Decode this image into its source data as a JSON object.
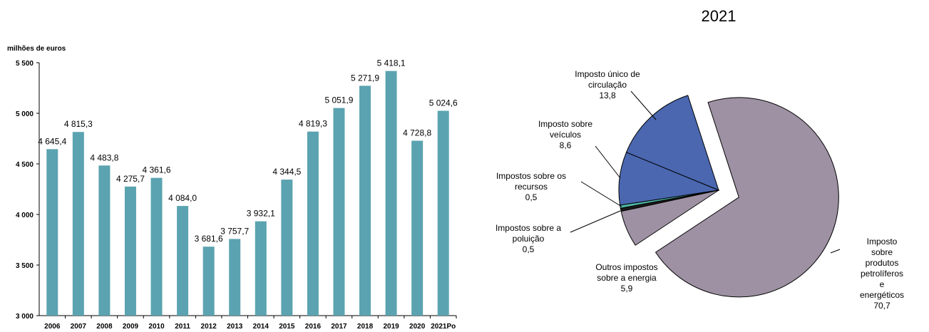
{
  "chart_data": [
    {
      "type": "bar",
      "y_label": "milhões de euros",
      "categories": [
        "2006",
        "2007",
        "2008",
        "2009",
        "2010",
        "2011",
        "2012",
        "2013",
        "2014",
        "2015",
        "2016",
        "2017",
        "2018",
        "2019",
        "2020",
        "2021Po"
      ],
      "values": [
        4645.4,
        4815.3,
        4483.8,
        4275.7,
        4361.6,
        4084.0,
        3681.6,
        3757.7,
        3932.1,
        4344.5,
        4819.3,
        5051.9,
        5271.9,
        5418.1,
        4728.8,
        5024.6
      ],
      "value_labels": [
        "4 645,4",
        "4 815,3",
        "4 483,8",
        "4 275,7",
        "4 361,6",
        "4 084,0",
        "3 681,6",
        "3 757,7",
        "3 932,1",
        "4 344,5",
        "4 819,3",
        "5 051,9",
        "5 271,9",
        "5 418,1",
        "4 728,8",
        "5 024,6"
      ],
      "color": "#5ba3b0",
      "ylim": [
        3000,
        5500
      ],
      "yticks": [
        {
          "value": 3000,
          "label": "3 000"
        },
        {
          "value": 3500,
          "label": "3 500"
        },
        {
          "value": 4000,
          "label": "4 000"
        },
        {
          "value": 4500,
          "label": "4 500"
        },
        {
          "value": 5000,
          "label": "5 000"
        },
        {
          "value": 5500,
          "label": "5 500"
        }
      ]
    },
    {
      "type": "pie",
      "title": "2021",
      "categories": [
        "Imposto único de\ncirculação",
        "Imposto sobre\nveículos",
        "Impostos sobre os\nrecursos",
        "Impostos sobre a\npoluição",
        "Outros impostos\nsobre a energia",
        "Imposto sobre\nprodutos petrolíferos\ne energéticos"
      ],
      "values": [
        13.8,
        8.6,
        0.5,
        0.5,
        5.9,
        70.7
      ],
      "value_labels": [
        "13,8",
        "8,6",
        "0,5",
        "0,5",
        "5,9",
        "70,7"
      ],
      "colors": [
        "#4a67b0",
        "#4a67b0",
        "#4fb8a5",
        "#1a1a1a",
        "#9e91a3",
        "#9e91a3"
      ]
    }
  ]
}
